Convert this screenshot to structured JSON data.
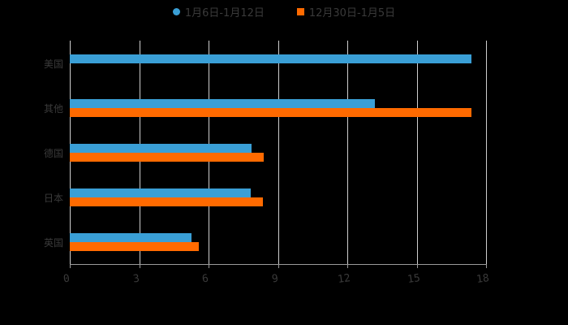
{
  "chart_data": {
    "type": "bar",
    "orientation": "horizontal",
    "title": "",
    "xlabel": "",
    "ylabel": "",
    "categories": [
      "美国",
      "其他",
      "德国",
      "日本",
      "英国"
    ],
    "series": [
      {
        "name": "1月6日-1月12日",
        "color": "#3a9fd6",
        "values": [
          17.37,
          13.19,
          7.86,
          7.82,
          5.26
        ]
      },
      {
        "name": "12月30日-1月5日",
        "color": "#ff6a00",
        "values": [
          null,
          17.37,
          8.39,
          8.35,
          5.58
        ]
      }
    ],
    "xlim": [
      0,
      18
    ],
    "xticks": [
      "0",
      "3",
      "6",
      "9",
      "12",
      "15",
      "18"
    ],
    "grid": true,
    "legend_position": "top"
  },
  "legend": {
    "items": [
      {
        "label": "1月6日-1月12日",
        "color": "#3a9fd6",
        "marker": "circle"
      },
      {
        "label": "12月30日-1月5日",
        "color": "#ff6a00",
        "marker": "square"
      }
    ]
  }
}
